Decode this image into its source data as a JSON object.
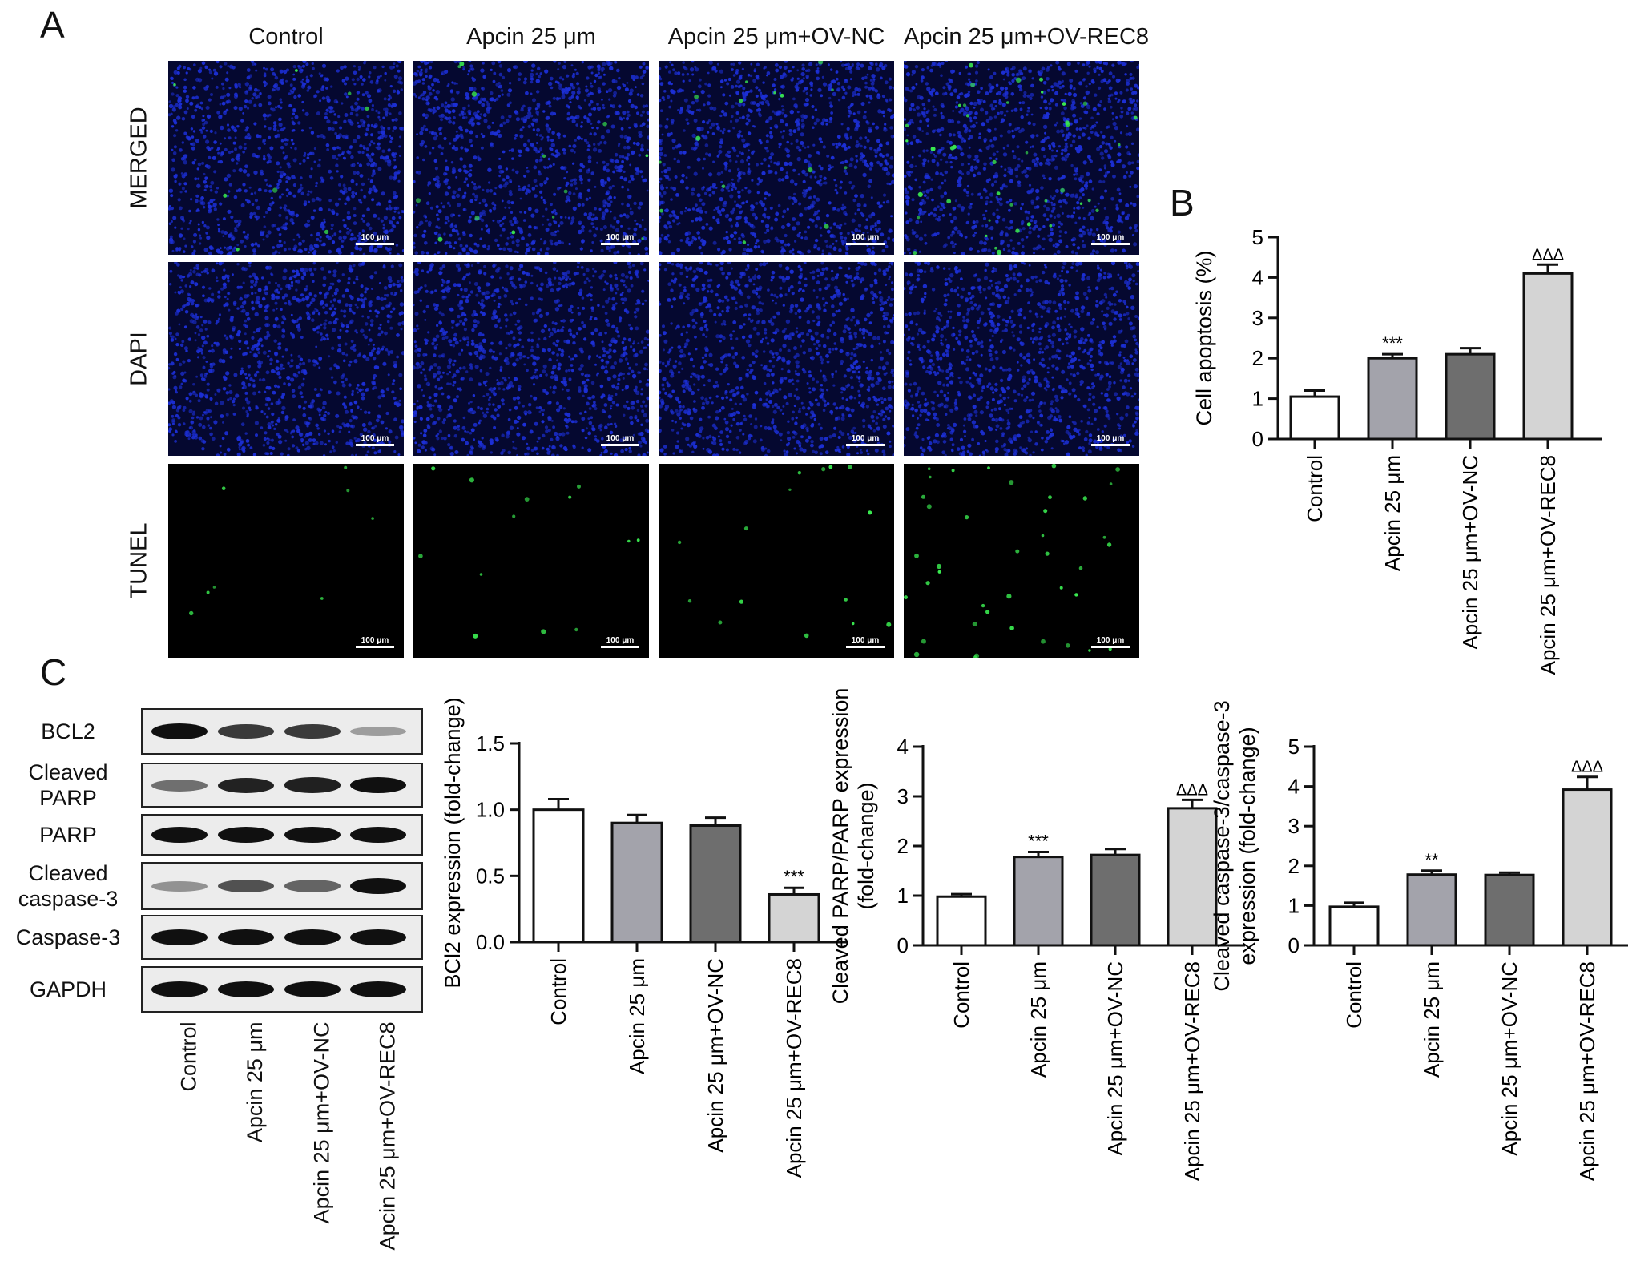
{
  "panels": {
    "a": "A",
    "b": "B",
    "c": "C"
  },
  "conditions": [
    "Control",
    "Apcin 25 μm",
    "Apcin 25 μm+OV-NC",
    "Apcin 25 μm+OV-REC8"
  ],
  "image_rows": [
    "MERGED",
    "DAPI",
    "TUNEL"
  ],
  "scale_bar": "100 μm",
  "colors": {
    "dapi": "#1c2fd6",
    "tunel": "#39e84f",
    "bar_control": "#ffffff",
    "bar_apcin": "#a3a3ab",
    "bar_ovnc": "#6e6e6e",
    "bar_ovrec8": "#d4d4d4"
  },
  "tunel_level": [
    0.1,
    0.25,
    0.3,
    1.0
  ],
  "blot": {
    "proteins": [
      "BCL2",
      "Cleaved\nPARP",
      "PARP",
      "Cleaved\ncaspase-3",
      "Caspase-3",
      "GAPDH"
    ],
    "band_intensity": [
      [
        1.0,
        0.78,
        0.78,
        0.25
      ],
      [
        0.5,
        0.9,
        0.92,
        1.0
      ],
      [
        1.0,
        1.0,
        1.0,
        1.0
      ],
      [
        0.3,
        0.65,
        0.55,
        1.0
      ],
      [
        1.0,
        1.0,
        1.0,
        1.0
      ],
      [
        1.0,
        1.0,
        1.0,
        1.0
      ]
    ]
  },
  "chart_data": [
    {
      "type": "bar",
      "categories": [
        "Control",
        "Apcin 25 μm",
        "Apcin 25 μm+OV-NC",
        "Apcin 25 μm+OV-REC8"
      ],
      "values": [
        1.05,
        2.0,
        2.1,
        4.1
      ],
      "errors": [
        0.15,
        0.1,
        0.15,
        0.22
      ],
      "annotations": [
        "",
        "***",
        "",
        "ΔΔΔ"
      ],
      "ylabel": "Cell apoptosis (%)",
      "ylim": [
        0,
        5
      ],
      "yticks": [
        0,
        1,
        2,
        3,
        4,
        5
      ]
    },
    {
      "type": "bar",
      "categories": [
        "Control",
        "Apcin 25 μm",
        "Apcin 25 μm+OV-NC",
        "Apcin 25 μm+OV-REC8"
      ],
      "values": [
        1.0,
        0.9,
        0.88,
        0.36
      ],
      "errors": [
        0.08,
        0.06,
        0.06,
        0.05
      ],
      "annotations": [
        "",
        "",
        "",
        "***"
      ],
      "ylabel": "BCl2 expression (fold-change)",
      "ylim": [
        0,
        1.5
      ],
      "yticks": [
        "0.0",
        "0.5",
        "1.0",
        "1.5"
      ]
    },
    {
      "type": "bar",
      "categories": [
        "Control",
        "Apcin 25 μm",
        "Apcin 25 μm+OV-NC",
        "Apcin 25 μm+OV-REC8"
      ],
      "values": [
        0.98,
        1.78,
        1.82,
        2.76
      ],
      "errors": [
        0.05,
        0.1,
        0.12,
        0.17
      ],
      "annotations": [
        "",
        "***",
        "",
        "ΔΔΔ"
      ],
      "ylabel": "Cleaved PARP/PARP expression\n(fold-change)",
      "ylim": [
        0,
        4
      ],
      "yticks": [
        0,
        1,
        2,
        3,
        4
      ]
    },
    {
      "type": "bar",
      "categories": [
        "Control",
        "Apcin 25 μm",
        "Apcin 25 μm+OV-NC",
        "Apcin 25 μm+OV-REC8"
      ],
      "values": [
        0.97,
        1.78,
        1.77,
        3.92
      ],
      "errors": [
        0.1,
        0.1,
        0.06,
        0.32
      ],
      "annotations": [
        "",
        "**",
        "",
        "ΔΔΔ"
      ],
      "ylabel": "Cleaved caspase-3/caspase-3\nexpression (fold-change)",
      "ylim": [
        0,
        5
      ],
      "yticks": [
        0,
        1,
        2,
        3,
        4,
        5
      ]
    }
  ]
}
